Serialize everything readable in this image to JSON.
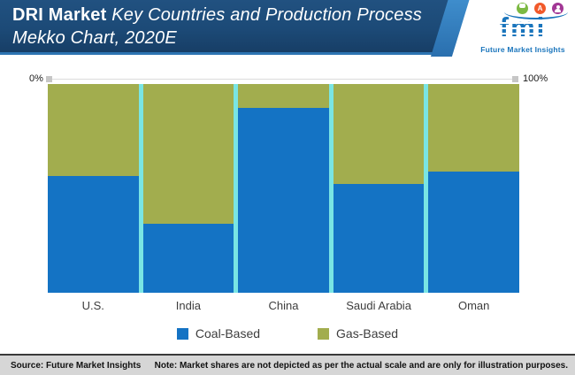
{
  "header": {
    "title_bold": "DRI Market",
    "title_italic_line1": "Key Countries and Production Process",
    "title_italic_line2": "Mekko Chart, 2020E",
    "logo": {
      "text": "fmi",
      "tagline": "Future Market Insights",
      "pin_letter": "A",
      "brand_blue": "#1a75bc",
      "icon_colors": {
        "chat": "#7cb942",
        "pin": "#f1592a",
        "person": "#a23795"
      }
    }
  },
  "scale": {
    "left": "0%",
    "right": "100%"
  },
  "chart_data": {
    "type": "mekko",
    "title": "DRI Market Key Countries and Production Process Mekko Chart, 2020E",
    "categories": [
      "U.S.",
      "India",
      "China",
      "Saudi Arabia",
      "Oman"
    ],
    "series": [
      {
        "name": "Coal-Based",
        "color": "#1473c4",
        "values": [
          56,
          33,
          88.5,
          52,
          58
        ]
      },
      {
        "name": "Gas-Based",
        "color": "#a2ad4e",
        "values": [
          44,
          67,
          11.5,
          48,
          42
        ]
      }
    ],
    "unit": "%",
    "axis": {
      "left_label": "0%",
      "right_label": "100%"
    },
    "column_gap_color": "#79e5e4",
    "legend_position": "bottom",
    "grid": false
  },
  "legend": [
    {
      "label": "Coal-Based",
      "color": "#1473c4"
    },
    {
      "label": "Gas-Based",
      "color": "#a2ad4e"
    }
  ],
  "footer": {
    "source_label": "Source:",
    "source_text": "Future Market Insights",
    "note_label": "Note:",
    "note_text": "Market shares are not depicted as per the actual scale and are only for illustration purposes."
  }
}
